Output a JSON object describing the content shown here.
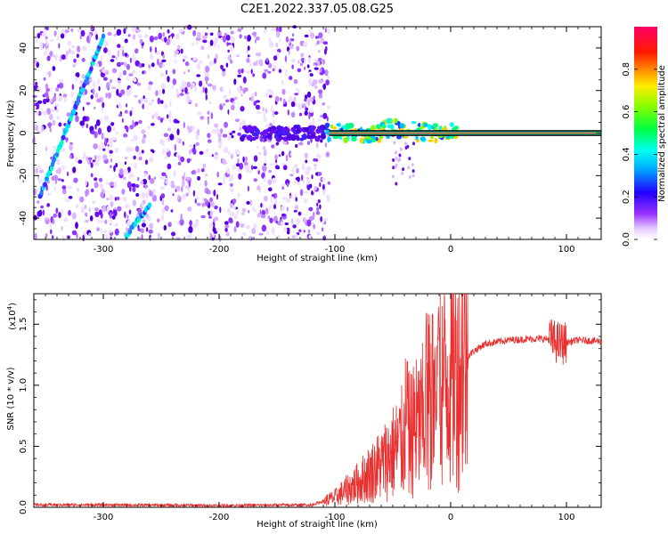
{
  "title": "C2E1.2022.337.05.08.G25",
  "chart_data": [
    {
      "type": "heatmap",
      "xlabel": "Height of straight line (km)",
      "ylabel": "Frequency (Hz)",
      "xlim": [
        -360,
        130
      ],
      "ylim": [
        -50,
        50
      ],
      "xticks": [
        -300,
        -200,
        -100,
        0,
        100
      ],
      "yticks": [
        -40,
        -20,
        0,
        20,
        40
      ],
      "colorbar": {
        "label": "Normalized spectral amplitude",
        "range": [
          0,
          1
        ],
        "ticks": [
          "0.0",
          "0.2",
          "0.4",
          "0.6",
          "0.8"
        ],
        "colormap": "rainbow (white-purple-blue-cyan-green-yellow-red-magenta)"
      },
      "features": {
        "noise_region_x": [
          -360,
          -105
        ],
        "carrier_line_x": [
          -105,
          130
        ],
        "carrier_freq_hz": 0,
        "diagonal_track_1": {
          "x": [
            -355,
            -300
          ],
          "y": [
            -30,
            45
          ]
        },
        "diagonal_track_2": {
          "x": [
            -280,
            -260
          ],
          "y": [
            -48,
            -34
          ]
        }
      }
    },
    {
      "type": "line",
      "xlabel": "Height of straight line (km)",
      "ylabel": "SNR (10 * v/v)",
      "scale_note": "(x10",
      "scale_exponent": "4",
      "scale_close": ")",
      "xlim": [
        -360,
        130
      ],
      "ylim": [
        0,
        1.75
      ],
      "xticks": [
        -300,
        -200,
        -100,
        0,
        100
      ],
      "yticks": [
        "0.0",
        "0.5",
        "1.0",
        "1.5"
      ],
      "color": "#e83030",
      "series": [
        {
          "x": [
            -360,
            -300,
            -200,
            -120,
            -100,
            -80,
            -60,
            -40,
            -25,
            -15,
            -10,
            0,
            10,
            20,
            30,
            50,
            70,
            85,
            95,
            110,
            130
          ],
          "y": [
            0.02,
            0.02,
            0.015,
            0.02,
            0.08,
            0.2,
            0.35,
            0.55,
            0.7,
            0.9,
            1.0,
            1.12,
            1.2,
            1.28,
            1.34,
            1.37,
            1.38,
            1.38,
            1.34,
            1.37,
            1.36
          ]
        }
      ]
    }
  ]
}
